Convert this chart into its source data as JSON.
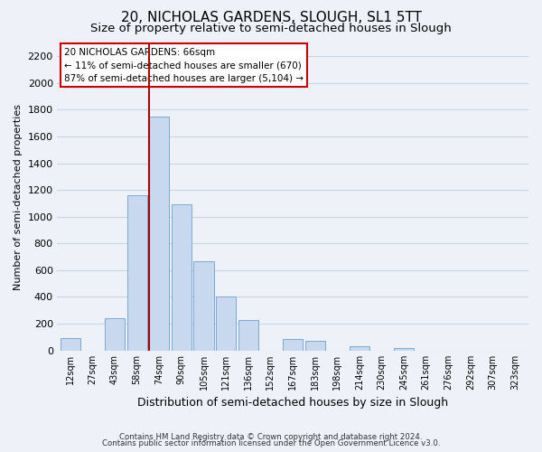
{
  "title": "20, NICHOLAS GARDENS, SLOUGH, SL1 5TT",
  "subtitle": "Size of property relative to semi-detached houses in Slough",
  "xlabel": "Distribution of semi-detached houses by size in Slough",
  "ylabel": "Number of semi-detached properties",
  "bar_labels": [
    "12sqm",
    "27sqm",
    "43sqm",
    "58sqm",
    "74sqm",
    "90sqm",
    "105sqm",
    "121sqm",
    "136sqm",
    "152sqm",
    "167sqm",
    "183sqm",
    "198sqm",
    "214sqm",
    "230sqm",
    "245sqm",
    "261sqm",
    "276sqm",
    "292sqm",
    "307sqm",
    "323sqm"
  ],
  "bar_values": [
    90,
    0,
    240,
    1160,
    1750,
    1090,
    670,
    400,
    230,
    0,
    85,
    70,
    0,
    30,
    0,
    20,
    0,
    0,
    0,
    0,
    0
  ],
  "bar_color": "#c8d8ee",
  "bar_edge_color": "#7aaad0",
  "vline_color": "#aa0000",
  "annotation_title": "20 NICHOLAS GARDENS: 66sqm",
  "annotation_line1": "← 11% of semi-detached houses are smaller (670)",
  "annotation_line2": "87% of semi-detached houses are larger (5,104) →",
  "annotation_box_facecolor": "#ffffff",
  "annotation_box_edgecolor": "#cc0000",
  "ylim": [
    0,
    2300
  ],
  "yticks": [
    0,
    200,
    400,
    600,
    800,
    1000,
    1200,
    1400,
    1600,
    1800,
    2000,
    2200
  ],
  "footer1": "Contains HM Land Registry data © Crown copyright and database right 2024.",
  "footer2": "Contains public sector information licensed under the Open Government Licence v3.0.",
  "title_fontsize": 11,
  "subtitle_fontsize": 9.5,
  "grid_color": "#c8d4e4",
  "bg_color": "#eef2f8"
}
